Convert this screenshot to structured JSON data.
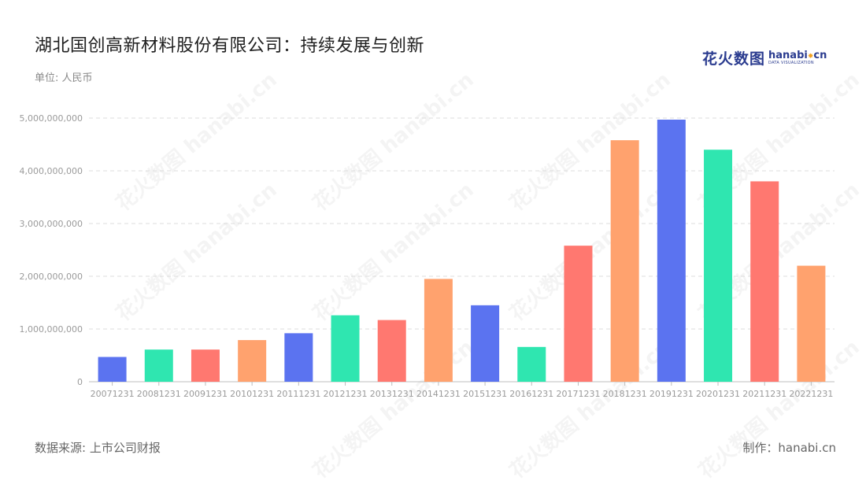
{
  "title": "湖北国创高新材料股份有限公司：持续发展与创新",
  "unit_label": "单位: 人民币",
  "logo": {
    "cn": "花火数图",
    "en": "hanabi",
    "en_suffix": "cn",
    "sub": "DATA VISUALIZATION"
  },
  "source": "数据来源: 上市公司财报",
  "maker": "制作：hanabi.cn",
  "watermark_text": "花火数图 hanabi.cn",
  "colors": [
    "#5b73f0",
    "#2fe6b0",
    "#ff7870",
    "#ffa26e"
  ],
  "chart_data": {
    "type": "bar",
    "categories": [
      "20071231",
      "20081231",
      "20091231",
      "20101231",
      "20111231",
      "20121231",
      "20131231",
      "20141231",
      "20151231",
      "20161231",
      "20171231",
      "20181231",
      "20191231",
      "20201231",
      "20211231",
      "20221231"
    ],
    "values": [
      470000000,
      610000000,
      610000000,
      790000000,
      920000000,
      1260000000,
      1170000000,
      1950000000,
      1450000000,
      660000000,
      2580000000,
      4580000000,
      4970000000,
      4400000000,
      3800000000,
      2200000000
    ],
    "y_ticks": [
      "0",
      "1,000,000,000",
      "2,000,000,000",
      "3,000,000,000",
      "4,000,000,000",
      "5,000,000,000"
    ],
    "y_tick_values": [
      0,
      1000000000,
      2000000000,
      3000000000,
      4000000000,
      5000000000
    ],
    "ylim": [
      0,
      5000000000
    ],
    "grid": true
  }
}
